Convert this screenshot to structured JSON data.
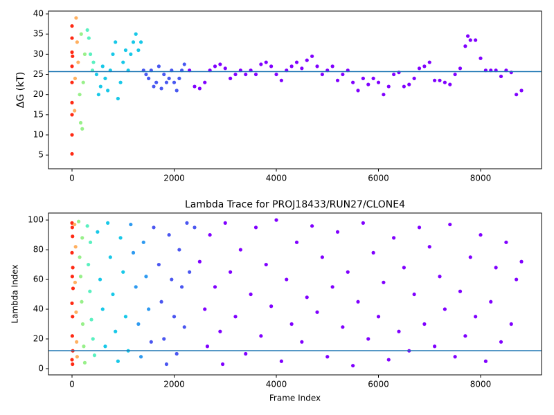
{
  "chart_data": [
    {
      "type": "scatter",
      "ylabel": "ΔG (kT)",
      "xlim": [
        -461,
        9193
      ],
      "ylim": [
        1.6,
        40.7
      ],
      "xticks": [
        0,
        2000,
        4000,
        6000,
        8000
      ],
      "yticks": [
        5,
        10,
        15,
        20,
        25,
        30,
        35,
        40
      ],
      "hline": 25.7,
      "hline_color": "#1f77b4",
      "series": [
        {
          "color": "#ff2a14",
          "x": [
            0,
            0,
            0,
            0,
            0,
            0,
            0,
            0,
            0,
            10
          ],
          "values": [
            5.3,
            10,
            15,
            18,
            23,
            27,
            30.5,
            34,
            37,
            29.5
          ]
        },
        {
          "color": "#ffb060",
          "x": [
            50,
            60,
            80,
            100,
            120
          ],
          "values": [
            16,
            24,
            39,
            33,
            28
          ]
        },
        {
          "color": "#98f08a",
          "x": [
            150,
            170,
            200,
            220,
            250,
            180
          ],
          "values": [
            20,
            13,
            11.5,
            23,
            30,
            35
          ]
        },
        {
          "color": "#5af0c0",
          "x": [
            300,
            330,
            360,
            400,
            420
          ],
          "values": [
            36,
            34,
            30,
            26,
            28
          ]
        },
        {
          "color": "#18c8e8",
          "x": [
            480,
            520,
            560,
            600,
            650,
            700,
            750,
            800,
            850,
            900,
            950,
            1000,
            1050,
            1100,
            1150,
            1200,
            1250,
            1300,
            1350
          ],
          "values": [
            25,
            20,
            22,
            27,
            24,
            21,
            26,
            30,
            33,
            19,
            23,
            28,
            31,
            26,
            30,
            33,
            35,
            31,
            33
          ]
        },
        {
          "color": "#4858f0",
          "x": [
            1400,
            1450,
            1500,
            1550,
            1600,
            1650,
            1700,
            1750,
            1800,
            1850,
            1900,
            1950,
            2000,
            2050,
            2100,
            2150,
            2200
          ],
          "values": [
            26,
            25,
            24,
            26,
            22,
            23,
            27,
            21.5,
            25,
            23,
            24,
            26,
            23,
            21,
            24,
            26,
            27.5
          ]
        },
        {
          "color": "#8000ff",
          "x": [
            2300,
            2400,
            2500,
            2600,
            2700,
            2800,
            2900,
            3000,
            3100,
            3200,
            3300,
            3400,
            3500,
            3600,
            3700,
            3800,
            3900,
            4000,
            4100,
            4200,
            4300,
            4400,
            4500,
            4600,
            4700,
            4800,
            4900,
            5000,
            5100,
            5200,
            5300,
            5400,
            5500,
            5600,
            5700,
            5800,
            5900,
            6000,
            6100,
            6200,
            6300,
            6400,
            6500,
            6600,
            6700,
            6800,
            6900,
            7000,
            7100,
            7200,
            7300,
            7400,
            7500,
            7600,
            7700,
            7750,
            7800,
            7900,
            8000,
            8100,
            8200,
            8300,
            8400,
            8500,
            8600,
            8700,
            8800
          ],
          "values": [
            26,
            22,
            21.5,
            23,
            26,
            27,
            27.5,
            26.5,
            24,
            25,
            26,
            25,
            26,
            25,
            27.5,
            28,
            27,
            25,
            23.5,
            26,
            27,
            28,
            26.5,
            28.5,
            29.5,
            27,
            25,
            26,
            27,
            23.5,
            25,
            26,
            23,
            21,
            24,
            22.5,
            24,
            23,
            20,
            22,
            25,
            25.5,
            22,
            22.5,
            24,
            26.5,
            27,
            28,
            23.5,
            23.5,
            23,
            22.5,
            25,
            26.5,
            32,
            34.5,
            33.5,
            33.5,
            29,
            26,
            26,
            26,
            24.5,
            26,
            25.5,
            20,
            21
          ]
        }
      ]
    },
    {
      "type": "scatter",
      "title": "Lambda Trace for PROJ18433/RUN27/CLONE4",
      "xlabel": "Frame Index",
      "ylabel": "Lambda Index",
      "xlim": [
        -461,
        9193
      ],
      "ylim": [
        -4.2,
        104.7
      ],
      "xticks": [
        0,
        2000,
        4000,
        6000,
        8000
      ],
      "yticks": [
        0,
        20,
        40,
        60,
        80,
        100
      ],
      "hline": 12.1,
      "hline_color": "#1f77b4",
      "series": [
        {
          "color": "#ff2a14",
          "x": [
            0,
            5,
            10,
            0,
            15,
            5,
            20,
            0,
            10,
            5,
            15,
            0,
            10
          ],
          "values": [
            98,
            95,
            89,
            78,
            68,
            62,
            54,
            44,
            35,
            22,
            12,
            6,
            3
          ]
        },
        {
          "color": "#ffb060",
          "x": [
            50,
            70,
            60,
            80,
            90,
            100
          ],
          "values": [
            97,
            82,
            58,
            38,
            18,
            8
          ]
        },
        {
          "color": "#98f08a",
          "x": [
            130,
            150,
            170,
            190,
            210,
            230,
            250,
            200
          ],
          "values": [
            99,
            75,
            62,
            45,
            30,
            15,
            4,
            88
          ]
        },
        {
          "color": "#5af0c0",
          "x": [
            300,
            320,
            350,
            380,
            410,
            440,
            360
          ],
          "values": [
            96,
            70,
            52,
            33,
            20,
            9,
            85
          ]
        },
        {
          "color": "#18c8e8",
          "x": [
            500,
            550,
            600,
            650,
            700,
            750,
            800,
            850,
            900,
            950,
            1000,
            1050,
            1100
          ],
          "values": [
            92,
            60,
            40,
            15,
            98,
            75,
            50,
            25,
            5,
            88,
            65,
            35,
            12
          ]
        },
        {
          "color": "#2e9af0",
          "x": [
            1150,
            1200,
            1250,
            1300,
            1350,
            1400,
            1450,
            1500
          ],
          "values": [
            97,
            78,
            55,
            30,
            8,
            85,
            62,
            40
          ]
        },
        {
          "color": "#4a56f0",
          "x": [
            1550,
            1600,
            1700,
            1750,
            1800,
            1850,
            1900,
            1950,
            2000,
            2050,
            2100,
            2150,
            2200,
            2250,
            2300,
            2400
          ],
          "values": [
            18,
            95,
            70,
            45,
            20,
            3,
            90,
            60,
            35,
            10,
            80,
            55,
            28,
            98,
            65,
            95
          ]
        },
        {
          "color": "#8000ff",
          "x": [
            2500,
            2600,
            2650,
            2700,
            2800,
            2900,
            2950,
            3000,
            3100,
            3200,
            3300,
            3400,
            3500,
            3600,
            3700,
            3800,
            3900,
            4000,
            4100,
            4200,
            4300,
            4400,
            4500,
            4600,
            4700,
            4800,
            4900,
            5000,
            5100,
            5200,
            5300,
            5400,
            5500,
            5600,
            5700,
            5800,
            5900,
            6000,
            6100,
            6200,
            6300,
            6400,
            6500,
            6600,
            6700,
            6800,
            6900,
            7000,
            7100,
            7200,
            7300,
            7400,
            7500,
            7600,
            7700,
            7800,
            7900,
            8000,
            8100,
            8200,
            8300,
            8400,
            8500,
            8600,
            8700,
            8800
          ],
          "values": [
            72,
            40,
            15,
            90,
            55,
            25,
            3,
            98,
            65,
            35,
            80,
            10,
            50,
            95,
            22,
            70,
            42,
            100,
            5,
            60,
            30,
            85,
            18,
            48,
            96,
            38,
            75,
            8,
            55,
            92,
            28,
            65,
            2,
            45,
            98,
            20,
            78,
            35,
            58,
            6,
            88,
            25,
            68,
            12,
            50,
            95,
            30,
            82,
            15,
            62,
            40,
            97,
            8,
            52,
            22,
            75,
            35,
            90,
            5,
            45,
            68,
            18,
            85,
            30,
            60,
            72
          ]
        }
      ]
    }
  ]
}
